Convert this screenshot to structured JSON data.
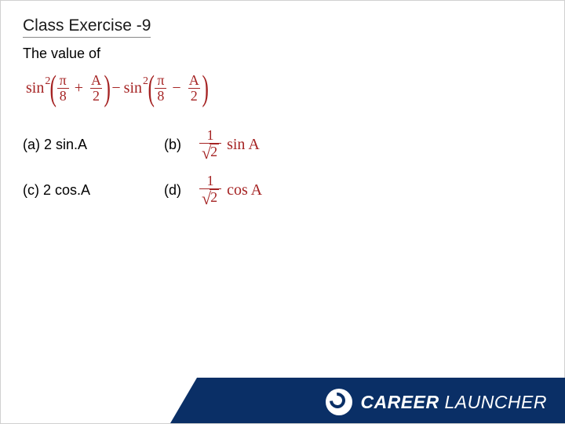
{
  "colors": {
    "math_color": "#a52323",
    "footer_bg": "#0a2f66",
    "title_underline": "#888888",
    "text": "#000000",
    "brand_text": "#ffffff"
  },
  "title": "Class Exercise -9",
  "subtitle": "The value of",
  "main_expression": {
    "term1": {
      "fn": "sin",
      "power": "2",
      "inside_left_num": "π",
      "inside_left_den": "8",
      "op": "+",
      "inside_right_num": "A",
      "inside_right_den": "2"
    },
    "middle_op": "−",
    "term2": {
      "fn": "sin",
      "power": "2",
      "inside_left_num": "π",
      "inside_left_den": "8",
      "op": "−",
      "inside_right_num": "A",
      "inside_right_den": "2"
    }
  },
  "options": {
    "a": {
      "label": "(a) 2 sin.A"
    },
    "b": {
      "label": "(b)",
      "frac_num": "1",
      "frac_den_radicand": "2",
      "trailing": "sin A"
    },
    "c": {
      "label": "(c) 2 cos.A"
    },
    "d": {
      "label": "(d)",
      "frac_num": "1",
      "frac_den_radicand": "2",
      "trailing": "cos A"
    }
  },
  "footer": {
    "brand_bold": "CAREER",
    "brand_light": " LAUNCHER"
  }
}
